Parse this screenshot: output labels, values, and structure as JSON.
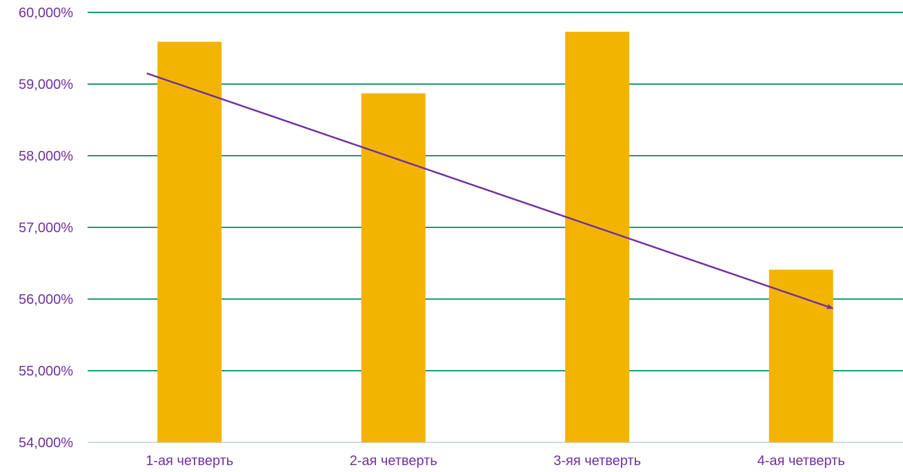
{
  "colors": {
    "bar": "#F2B400",
    "grid": "#1E9A75",
    "axis_line": "#C9DDE6",
    "tick_text": "#7030A0",
    "trend_arrow": "#7030A0"
  },
  "chart_data": {
    "type": "bar",
    "categories": [
      "1-ая четверть",
      "2-ая четверть",
      "3-яя четверть",
      "4-ая четверть"
    ],
    "values": [
      59.59,
      58.87,
      59.73,
      56.41
    ],
    "ylim": [
      54,
      60
    ],
    "yticks": [
      54,
      55,
      56,
      57,
      58,
      59,
      60
    ],
    "ytick_labels": [
      "54,000%",
      "55,000%",
      "56,000%",
      "57,000%",
      "58,000%",
      "59,000%",
      "60,000%"
    ],
    "grid": true,
    "legend": "none",
    "annotations": [
      {
        "type": "trend-arrow",
        "start": {
          "category_index": 0,
          "y": 59.15
        },
        "end": {
          "category_index": 3,
          "y": 55.87
        }
      }
    ]
  }
}
